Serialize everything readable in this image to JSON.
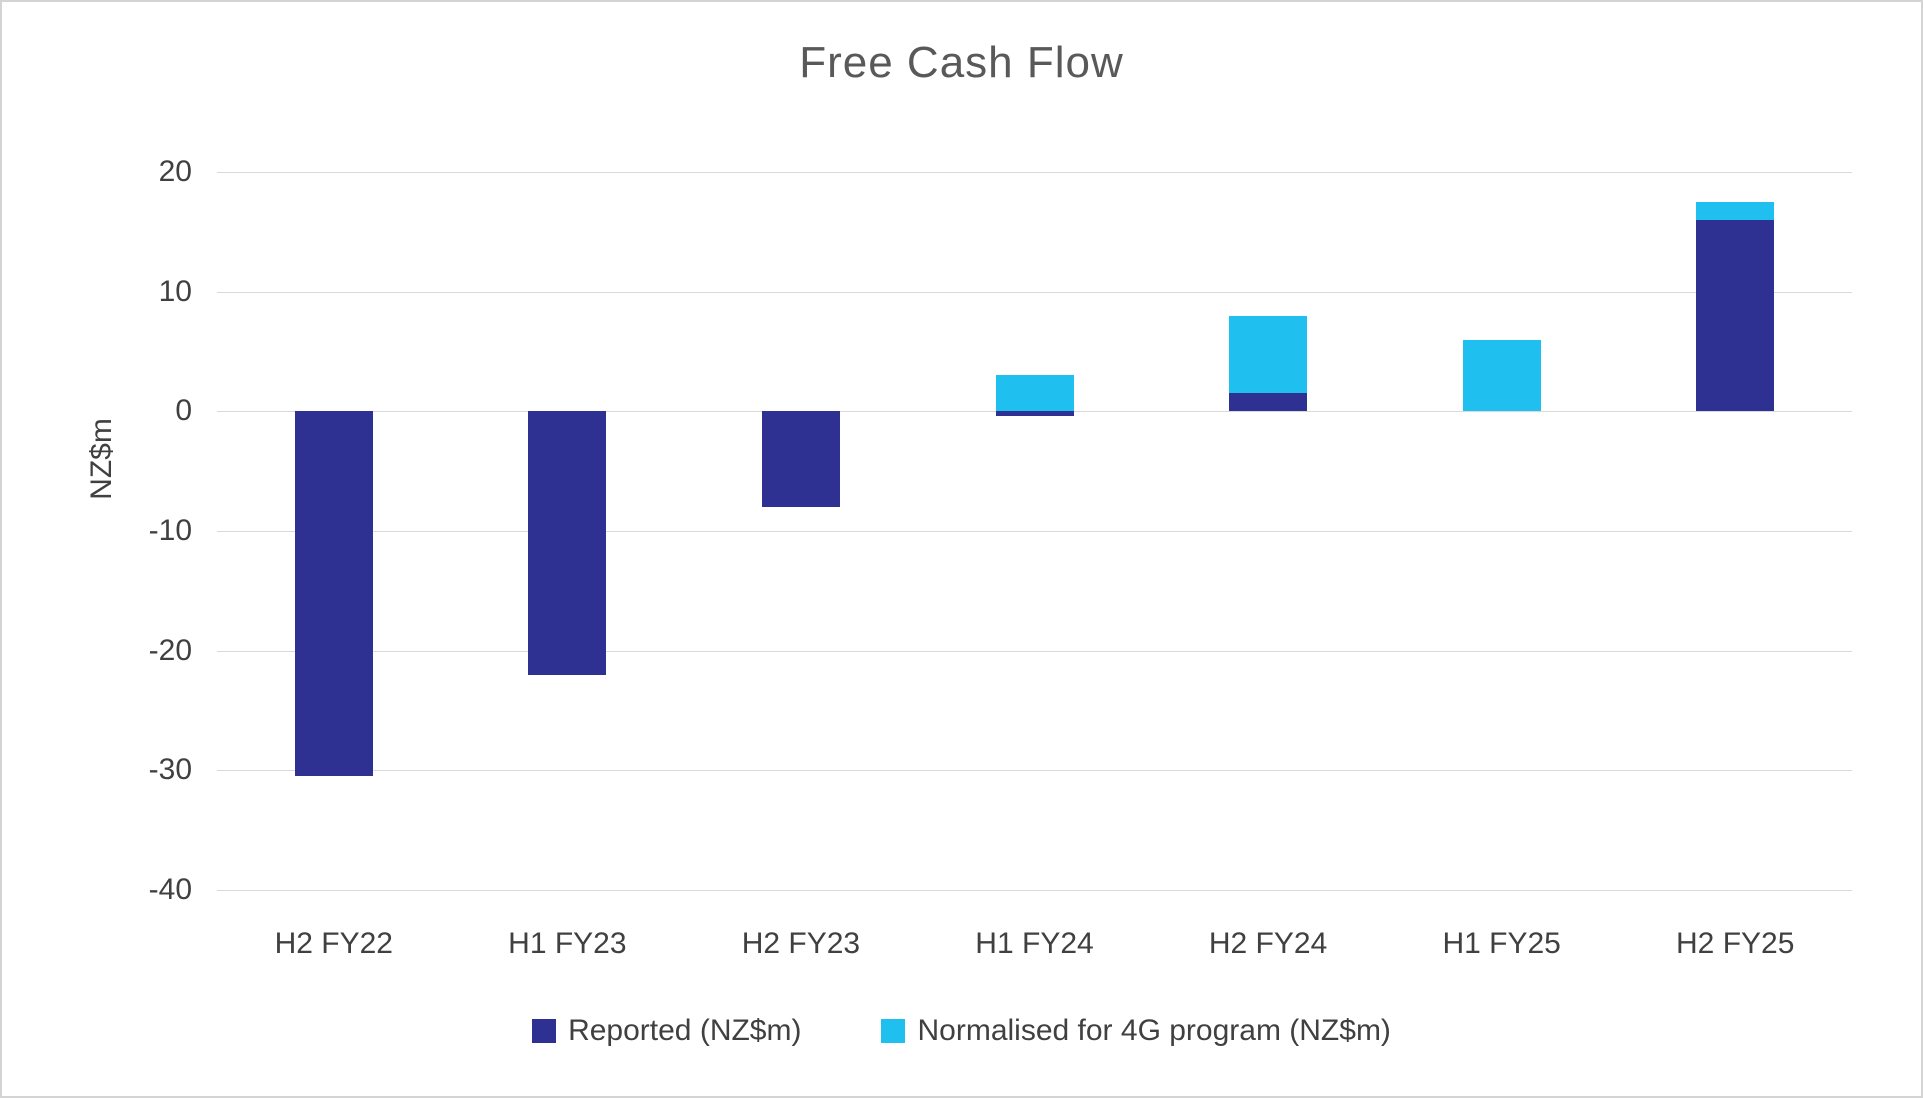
{
  "chart_data": {
    "type": "bar",
    "title": "Free Cash Flow",
    "ylabel": "NZ$m",
    "categories": [
      "H2 FY22",
      "H1 FY23",
      "H2 FY23",
      "H1 FY24",
      "H2 FY24",
      "H1 FY25",
      "H2 FY25"
    ],
    "series": [
      {
        "name": "Reported (NZ$m)",
        "color": "#2E3192",
        "values": [
          -30.5,
          -22,
          -8,
          -0.4,
          1.5,
          0,
          16
        ]
      },
      {
        "name": "Normalised for 4G program (NZ$m)",
        "color": "#1FBFEF",
        "values": [
          null,
          null,
          null,
          3,
          8,
          6,
          17.5
        ]
      }
    ],
    "ylim": [
      -40,
      20
    ],
    "ytick_step": 10,
    "grid": "horizontal",
    "legend_position": "bottom"
  }
}
